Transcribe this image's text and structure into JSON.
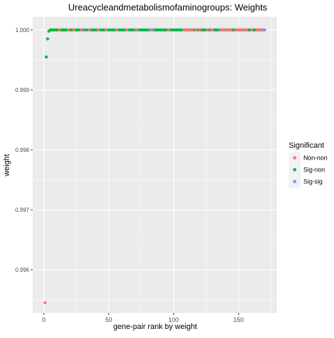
{
  "chart_data": {
    "type": "scatter",
    "title": "Ureacycleandmetabolismofaminogroups: Weights",
    "xlabel": "gene-pair rank by weight",
    "ylabel": "weight",
    "xlim": [
      -8.5,
      179.5
    ],
    "ylim": [
      0.99528,
      1.00022
    ],
    "x_ticks": [
      0,
      50,
      100,
      150
    ],
    "x_tick_labels": [
      "0",
      "50",
      "100",
      "150"
    ],
    "y_ticks": [
      0.996,
      0.997,
      0.998,
      0.999,
      1.0
    ],
    "y_tick_labels": [
      "0.996",
      "0.997",
      "0.998",
      "0.999",
      "1.000"
    ],
    "grid": true,
    "legend": {
      "title": "Significant",
      "position": "right",
      "entries": [
        "Non-non",
        "Sig-non",
        "Sig-sig"
      ]
    },
    "colors": {
      "Non-non": "#F8766D",
      "Sig-non": "#00BA38",
      "Sig-sig": "#619CFF",
      "panel_bg": "#EBEBEB",
      "grid": "#FFFFFF"
    },
    "series": [
      {
        "name": "Non-non",
        "points": [
          [
            1,
            0.99545
          ],
          [
            12,
            1.0
          ],
          [
            19,
            1.0
          ],
          [
            23,
            1.0
          ],
          [
            29,
            1.0
          ],
          [
            35,
            1.0
          ],
          [
            42,
            1.0
          ],
          [
            48,
            1.0
          ],
          [
            56,
            1.0
          ],
          [
            64,
            1.0
          ],
          [
            71,
            1.0
          ],
          [
            83,
            1.0
          ],
          [
            96,
            1.0
          ],
          [
            108,
            1.0
          ],
          [
            110,
            1.0
          ],
          [
            112,
            1.0
          ],
          [
            114,
            1.0
          ],
          [
            117,
            1.0
          ],
          [
            120,
            1.0
          ],
          [
            126,
            1.0
          ],
          [
            129,
            1.0
          ],
          [
            136,
            1.0
          ],
          [
            138,
            1.0
          ],
          [
            140,
            1.0
          ],
          [
            142,
            1.0
          ],
          [
            144,
            1.0
          ],
          [
            148,
            1.0
          ],
          [
            150,
            1.0
          ],
          [
            152,
            1.0
          ],
          [
            154,
            1.0
          ],
          [
            156,
            1.0
          ],
          [
            160,
            1.0
          ],
          [
            164,
            1.0
          ],
          [
            166,
            1.0
          ],
          [
            168,
            1.0
          ]
        ]
      },
      {
        "name": "Sig-non",
        "points": [
          [
            2,
            0.99955
          ],
          [
            3,
            0.99985
          ],
          [
            4,
            0.99998
          ],
          [
            5,
            1.0
          ],
          [
            6,
            1.0
          ],
          [
            7,
            1.0
          ],
          [
            8,
            1.0
          ],
          [
            9,
            1.0
          ],
          [
            10,
            1.0
          ],
          [
            11,
            1.0
          ],
          [
            13,
            1.0
          ],
          [
            14,
            1.0
          ],
          [
            15,
            1.0
          ],
          [
            16,
            1.0
          ],
          [
            17,
            1.0
          ],
          [
            18,
            1.0
          ],
          [
            20,
            1.0
          ],
          [
            22,
            1.0
          ],
          [
            25,
            1.0
          ],
          [
            27,
            1.0
          ],
          [
            30,
            1.0
          ],
          [
            33,
            1.0
          ],
          [
            36,
            1.0
          ],
          [
            38,
            1.0
          ],
          [
            40,
            1.0
          ],
          [
            44,
            1.0
          ],
          [
            46,
            1.0
          ],
          [
            50,
            1.0
          ],
          [
            52,
            1.0
          ],
          [
            54,
            1.0
          ],
          [
            58,
            1.0
          ],
          [
            60,
            1.0
          ],
          [
            62,
            1.0
          ],
          [
            66,
            1.0
          ],
          [
            68,
            1.0
          ],
          [
            70,
            1.0
          ],
          [
            74,
            1.0
          ],
          [
            76,
            1.0
          ],
          [
            78,
            1.0
          ],
          [
            80,
            1.0
          ],
          [
            86,
            1.0
          ],
          [
            88,
            1.0
          ],
          [
            90,
            1.0
          ],
          [
            92,
            1.0
          ],
          [
            94,
            1.0
          ],
          [
            98,
            1.0
          ],
          [
            100,
            1.0
          ],
          [
            102,
            1.0
          ],
          [
            104,
            1.0
          ],
          [
            106,
            1.0
          ],
          [
            111,
            1.0
          ],
          [
            116,
            1.0
          ],
          [
            119,
            1.0
          ],
          [
            122,
            1.0
          ],
          [
            124,
            1.0
          ],
          [
            128,
            1.0
          ],
          [
            132,
            1.0
          ],
          [
            134,
            1.0
          ],
          [
            139,
            1.0
          ],
          [
            143,
            1.0
          ],
          [
            146,
            1.0
          ],
          [
            151,
            1.0
          ],
          [
            158,
            1.0
          ],
          [
            162,
            1.0
          ],
          [
            167,
            1.0
          ]
        ]
      },
      {
        "name": "Sig-sig",
        "points": "dense: every remaining integer rank from 1 to 170 at weight 1.000"
      }
    ]
  }
}
